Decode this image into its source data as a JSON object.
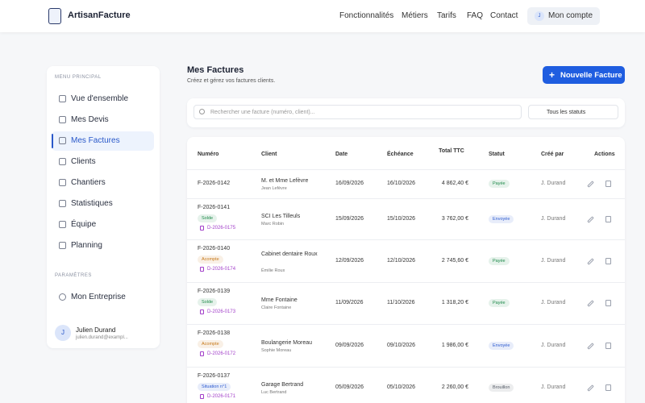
{
  "header": {
    "brand": "ArtisanFacture",
    "nav": [
      "Fonctionnalités",
      "Métiers",
      "Tarifs",
      "FAQ",
      "Contact"
    ],
    "account_initial": "J",
    "account": "Mon compte"
  },
  "sidebar": {
    "main_label": "MENU PRINCIPAL",
    "items": [
      "Vue d'ensemble",
      "Mes Devis",
      "Mes Factures",
      "Clients",
      "Chantiers",
      "Statistiques",
      "Équipe",
      "Planning"
    ],
    "settings_label": "PARAMÈTRES",
    "settings_items": [
      "Mon Entreprise"
    ],
    "user": {
      "initial": "J",
      "name": "Julien Durand",
      "email": "julien.durand@exampl..."
    }
  },
  "main": {
    "title": "Mes Factures",
    "subtitle": "Créez et gérez vos factures clients.",
    "new_button": "Nouvelle Facture",
    "search_placeholder": "Rechercher une facture (numéro, client)...",
    "status_filter": "Tous les statuts"
  },
  "table": {
    "headers": [
      "Numéro",
      "Client",
      "Date",
      "Échéance",
      "Total TTC",
      "Statut",
      "Créé par",
      "Actions"
    ],
    "rows": [
      {
        "number": "F-2026-0142",
        "client": "M. et Mme Lefèvre",
        "contact": "Jean Lefèvre",
        "date": "16/09/2026",
        "due": "16/10/2026",
        "total": "4 862,40 €",
        "status": "Payée",
        "status_color": "#1e8a4a",
        "created_by": "J. Durand"
      },
      {
        "number": "F-2026-0141",
        "tag": "Solde",
        "tag_color": "#1e8a4a",
        "devis": "D-2026-0175",
        "client": "SCI Les Tilleuls",
        "contact": "Marc Robin",
        "date": "15/09/2026",
        "due": "15/10/2026",
        "total": "3 762,00 €",
        "status": "Envoyée",
        "status_color": "#2d5bd0",
        "created_by": "J. Durand"
      },
      {
        "number": "F-2026-0140",
        "tag": "Acompte",
        "tag_color": "#c7791a",
        "devis": "D-2026-0174",
        "client": "Cabinet dentaire Roux",
        "contact": "Émilie Roux",
        "date": "12/09/2026",
        "due": "12/10/2026",
        "total": "2 745,60 €",
        "status": "Payée",
        "status_color": "#1e8a4a",
        "created_by": "J. Durand"
      },
      {
        "number": "F-2026-0139",
        "tag": "Solde",
        "tag_color": "#1e8a4a",
        "devis": "D-2026-0173",
        "client": "Mme Fontaine",
        "contact": "Claire Fontaine",
        "date": "11/09/2026",
        "due": "11/10/2026",
        "total": "1 318,20 €",
        "status": "Payée",
        "status_color": "#1e8a4a",
        "created_by": "J. Durand"
      },
      {
        "number": "F-2026-0138",
        "tag": "Acompte",
        "tag_color": "#c7791a",
        "devis": "D-2026-0172",
        "client": "Boulangerie Moreau",
        "contact": "Sophie Moreau",
        "date": "09/09/2026",
        "due": "09/10/2026",
        "total": "1 986,00 €",
        "status": "Envoyée",
        "status_color": "#2d5bd0",
        "created_by": "J. Durand"
      },
      {
        "number": "F-2026-0137",
        "tag": "Situation n°1",
        "tag_color": "#2d5bd0",
        "devis": "D-2026-0171",
        "client": "Garage Bertrand",
        "contact": "Luc Bertrand",
        "date": "05/09/2026",
        "due": "05/10/2026",
        "total": "2 260,00 €",
        "status": "Brouillon",
        "status_color": "#555b66",
        "created_by": "J. Durand"
      }
    ]
  }
}
